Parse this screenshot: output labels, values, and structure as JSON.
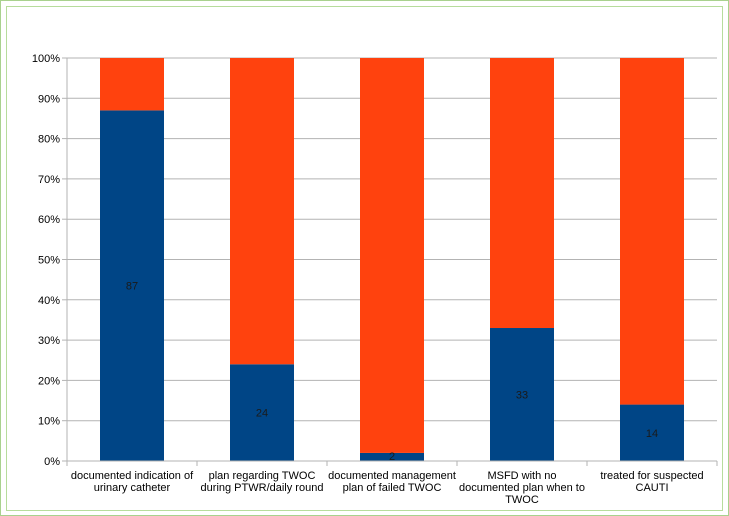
{
  "chart_data": {
    "type": "bar",
    "stacked": true,
    "categories": [
      "documented indication of urinary catheter",
      "plan regarding TWOC during PTWR/daily round",
      "documented management plan of failed TWOC",
      "MSFD with no documented plan when to TWOC",
      "treated for suspected CAUTI"
    ],
    "category_lines": [
      [
        "documented indication of",
        "urinary catheter"
      ],
      [
        "plan regarding TWOC",
        "during PTWR/daily round"
      ],
      [
        "documented management",
        "plan of failed TWOC"
      ],
      [
        "MSFD with no",
        "documented plan when to",
        "TWOC"
      ],
      [
        "treated for suspected",
        "CAUTI"
      ]
    ],
    "series": [
      {
        "values": [
          87,
          24,
          2,
          33,
          14
        ],
        "color": "#004586"
      },
      {
        "values": [
          13,
          76,
          98,
          67,
          86
        ],
        "color": "#ff420e"
      }
    ],
    "data_labels": [
      "87",
      "24",
      "2",
      "33",
      "14"
    ],
    "ylim": [
      0,
      100
    ],
    "yticks": [
      "0%",
      "10%",
      "20%",
      "30%",
      "40%",
      "50%",
      "60%",
      "70%",
      "80%",
      "90%",
      "100%"
    ],
    "grid": true,
    "legend": "none"
  }
}
